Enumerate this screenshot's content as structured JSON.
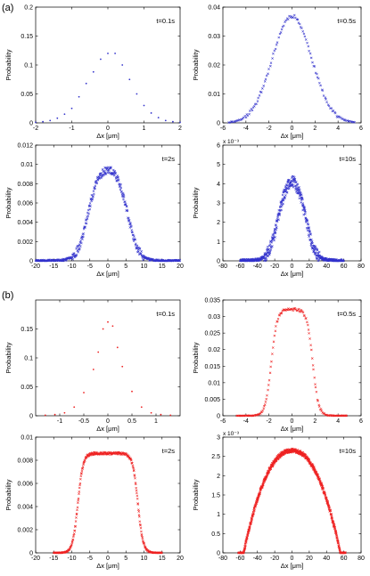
{
  "labels": {
    "panel_a": "(a)",
    "panel_b": "(b)"
  },
  "chart_data": [
    {
      "id": "a1",
      "panel": "a",
      "type": "scatter",
      "annotation": "t=0.1s",
      "xlabel": "Δx [μm]",
      "ylabel": "Probability",
      "xlim": [
        -2,
        2
      ],
      "ylim": [
        0,
        0.2
      ],
      "xticks": [
        -2,
        -1,
        0,
        1,
        2
      ],
      "yticks": [
        0,
        0.05,
        0.1,
        0.15,
        0.2
      ],
      "xtick_labels": [
        "-2",
        "-1",
        "0",
        "1",
        "2"
      ],
      "ytick_labels": [
        "0",
        "0.05",
        "0.1",
        "0.15",
        "0.2"
      ],
      "exponent": "",
      "color": "#3333cc",
      "marker": "dot",
      "grid": false,
      "x": [
        -2.0,
        -1.8,
        -1.6,
        -1.4,
        -1.2,
        -1.0,
        -0.8,
        -0.6,
        -0.4,
        -0.2,
        0.0,
        0.2,
        0.4,
        0.6,
        0.8,
        1.0,
        1.2,
        1.4,
        1.6,
        1.8,
        2.0
      ],
      "y": [
        0.001,
        0.002,
        0.004,
        0.008,
        0.015,
        0.025,
        0.045,
        0.068,
        0.088,
        0.11,
        0.12,
        0.12,
        0.1,
        0.075,
        0.05,
        0.03,
        0.017,
        0.009,
        0.004,
        0.002,
        0.001
      ]
    },
    {
      "id": "a2",
      "panel": "a",
      "type": "scatter",
      "annotation": "t=0.5s",
      "xlabel": "Δx [μm]",
      "ylabel": "Probability",
      "xlim": [
        -6,
        6
      ],
      "ylim": [
        0,
        0.04
      ],
      "xticks": [
        -6,
        -4,
        -2,
        0,
        2,
        4,
        6
      ],
      "yticks": [
        0,
        0.01,
        0.02,
        0.03,
        0.04
      ],
      "xtick_labels": [
        "-6",
        "-4",
        "-2",
        "0",
        "2",
        "4",
        "6"
      ],
      "ytick_labels": [
        "0",
        "0.01",
        "0.02",
        "0.03",
        "0.04"
      ],
      "exponent": "",
      "color": "#3333cc",
      "marker": "cross",
      "grid": false,
      "model": {
        "shape": "gauss",
        "center": 0,
        "width": 1.7,
        "peak": 0.037,
        "flat_half": 0,
        "edge": 0,
        "xmin": -5.5,
        "xmax": 5.5,
        "count": 120,
        "noise": 0.0006,
        "seed": 11
      }
    },
    {
      "id": "a3",
      "panel": "a",
      "type": "scatter",
      "annotation": "t=2s",
      "xlabel": "Δx [μm]",
      "ylabel": "Probability",
      "xlim": [
        -20,
        20
      ],
      "ylim": [
        0,
        0.012
      ],
      "xticks": [
        -20,
        -15,
        -10,
        -5,
        0,
        5,
        10,
        15,
        20
      ],
      "yticks": [
        0,
        0.002,
        0.004,
        0.006,
        0.008,
        0.01,
        0.012
      ],
      "xtick_labels": [
        "-20",
        "-15",
        "-10",
        "-5",
        "0",
        "5",
        "10",
        "15",
        "20"
      ],
      "ytick_labels": [
        "0",
        "0.002",
        "0.004",
        "0.006",
        "0.008",
        "0.01",
        "0.012"
      ],
      "exponent": "",
      "color": "#3333cc",
      "marker": "cross",
      "grid": false,
      "model": {
        "shape": "flat",
        "center": 0,
        "width": 0,
        "peak": 0.0097,
        "flat_half": 5.5,
        "edge": 3.2,
        "xmin": -20,
        "xmax": 20,
        "count": 420,
        "noise": 0.0004,
        "seed": 23
      }
    },
    {
      "id": "a4",
      "panel": "a",
      "type": "scatter",
      "annotation": "t=10s",
      "xlabel": "Δx [μm]",
      "ylabel": "Probability",
      "xlim": [
        -80,
        80
      ],
      "ylim": [
        0,
        6
      ],
      "xticks": [
        -80,
        -60,
        -40,
        -20,
        0,
        20,
        40,
        60,
        80
      ],
      "yticks": [
        0,
        1,
        2,
        3,
        4,
        5,
        6
      ],
      "xtick_labels": [
        "-80",
        "-60",
        "-40",
        "-20",
        "0",
        "20",
        "40",
        "60",
        "80"
      ],
      "ytick_labels": [
        "0",
        "1",
        "2",
        "3",
        "4",
        "5",
        "6"
      ],
      "exponent": "x 10⁻³",
      "color": "#3333cc",
      "marker": "cross",
      "grid": false,
      "model": {
        "shape": "flat",
        "center": 0,
        "width": 0,
        "peak": 4.4,
        "flat_half": 16,
        "edge": 12,
        "xmin": -60,
        "xmax": 60,
        "count": 520,
        "noise": 0.3,
        "seed": 37
      }
    },
    {
      "id": "b1",
      "panel": "b",
      "type": "scatter",
      "annotation": "t=0.1s",
      "xlabel": "Δx [μm]",
      "ylabel": "Probability",
      "xlim": [
        -1.5,
        1.5
      ],
      "ylim": [
        0,
        0.2
      ],
      "xticks": [
        -1,
        -0.5,
        0,
        0.5,
        1
      ],
      "yticks": [
        0,
        0.05,
        0.1,
        0.15
      ],
      "xtick_labels": [
        "-1",
        "-0.5",
        "0",
        "0.5",
        "1"
      ],
      "ytick_labels": [
        "0",
        "0.05",
        "0.1",
        "0.15"
      ],
      "exponent": "",
      "color": "#ee2222",
      "marker": "dot",
      "grid": false,
      "x": [
        -1.3,
        -1.1,
        -0.9,
        -0.7,
        -0.5,
        -0.3,
        -0.2,
        -0.1,
        0.0,
        0.1,
        0.2,
        0.3,
        0.5,
        0.7,
        0.9,
        1.1,
        1.3
      ],
      "y": [
        0.001,
        0.002,
        0.005,
        0.015,
        0.04,
        0.08,
        0.11,
        0.15,
        0.162,
        0.155,
        0.118,
        0.085,
        0.042,
        0.015,
        0.005,
        0.002,
        0.001
      ]
    },
    {
      "id": "b2",
      "panel": "b",
      "type": "scatter",
      "annotation": "t=0.5s",
      "xlabel": "Δx [μm]",
      "ylabel": "Probability",
      "xlim": [
        -6,
        6
      ],
      "ylim": [
        0,
        0.035
      ],
      "xticks": [
        -6,
        -4,
        -2,
        0,
        2,
        4,
        6
      ],
      "yticks": [
        0,
        0.005,
        0.01,
        0.015,
        0.02,
        0.025,
        0.03,
        0.035
      ],
      "xtick_labels": [
        "-6",
        "-4",
        "-2",
        "0",
        "2",
        "4",
        "6"
      ],
      "ytick_labels": [
        "0",
        "0.005",
        "0.01",
        "0.015",
        "0.02",
        "0.025",
        "0.03",
        "0.035"
      ],
      "exponent": "",
      "color": "#ee2222",
      "marker": "cross",
      "grid": false,
      "model": {
        "shape": "flat",
        "center": 0,
        "width": 0,
        "peak": 0.0322,
        "flat_half": 1.8,
        "edge": 0.55,
        "xmin": -4.8,
        "xmax": 4.8,
        "count": 150,
        "noise": 0.0004,
        "seed": 53
      }
    },
    {
      "id": "b3",
      "panel": "b",
      "type": "scatter",
      "annotation": "t=2s",
      "xlabel": "Δx [μm]",
      "ylabel": "Probability",
      "xlim": [
        -20,
        20
      ],
      "ylim": [
        0,
        0.01
      ],
      "xticks": [
        -20,
        -15,
        -10,
        -5,
        0,
        5,
        10,
        15,
        20
      ],
      "yticks": [
        0,
        0.002,
        0.004,
        0.006,
        0.008,
        0.01
      ],
      "xtick_labels": [
        "-20",
        "-15",
        "-10",
        "-5",
        "0",
        "5",
        "10",
        "15",
        "20"
      ],
      "ytick_labels": [
        "0",
        "0.002",
        "0.004",
        "0.006",
        "0.008",
        "0.01"
      ],
      "exponent": "",
      "color": "#ee2222",
      "marker": "cross",
      "grid": false,
      "model": {
        "shape": "flat",
        "center": 0,
        "width": 0,
        "peak": 0.0086,
        "flat_half": 8.3,
        "edge": 1.6,
        "xmin": -15,
        "xmax": 15,
        "count": 320,
        "noise": 0.0001,
        "seed": 71
      }
    },
    {
      "id": "b4",
      "panel": "b",
      "type": "scatter",
      "annotation": "t=10s",
      "xlabel": "Δx [μm]",
      "ylabel": "Probability",
      "xlim": [
        -80,
        80
      ],
      "ylim": [
        0,
        3
      ],
      "xticks": [
        -80,
        -60,
        -40,
        -20,
        0,
        20,
        40,
        60,
        80
      ],
      "yticks": [
        0,
        0.5,
        1,
        1.5,
        2,
        2.5,
        3
      ],
      "xtick_labels": [
        "-80",
        "-60",
        "-40",
        "-20",
        "0",
        "20",
        "40",
        "60",
        "80"
      ],
      "ytick_labels": [
        "0",
        "0.5",
        "1",
        "1.5",
        "2",
        "2.5",
        "3"
      ],
      "exponent": "x 10⁻³",
      "color": "#ee2222",
      "marker": "cross",
      "grid": false,
      "model": {
        "shape": "dome",
        "center": 0,
        "width": 0,
        "peak": 2.65,
        "flat_half": 56,
        "edge": 2.2,
        "xmin": -62,
        "xmax": 62,
        "count": 720,
        "noise": 0.05,
        "seed": 97
      }
    }
  ]
}
